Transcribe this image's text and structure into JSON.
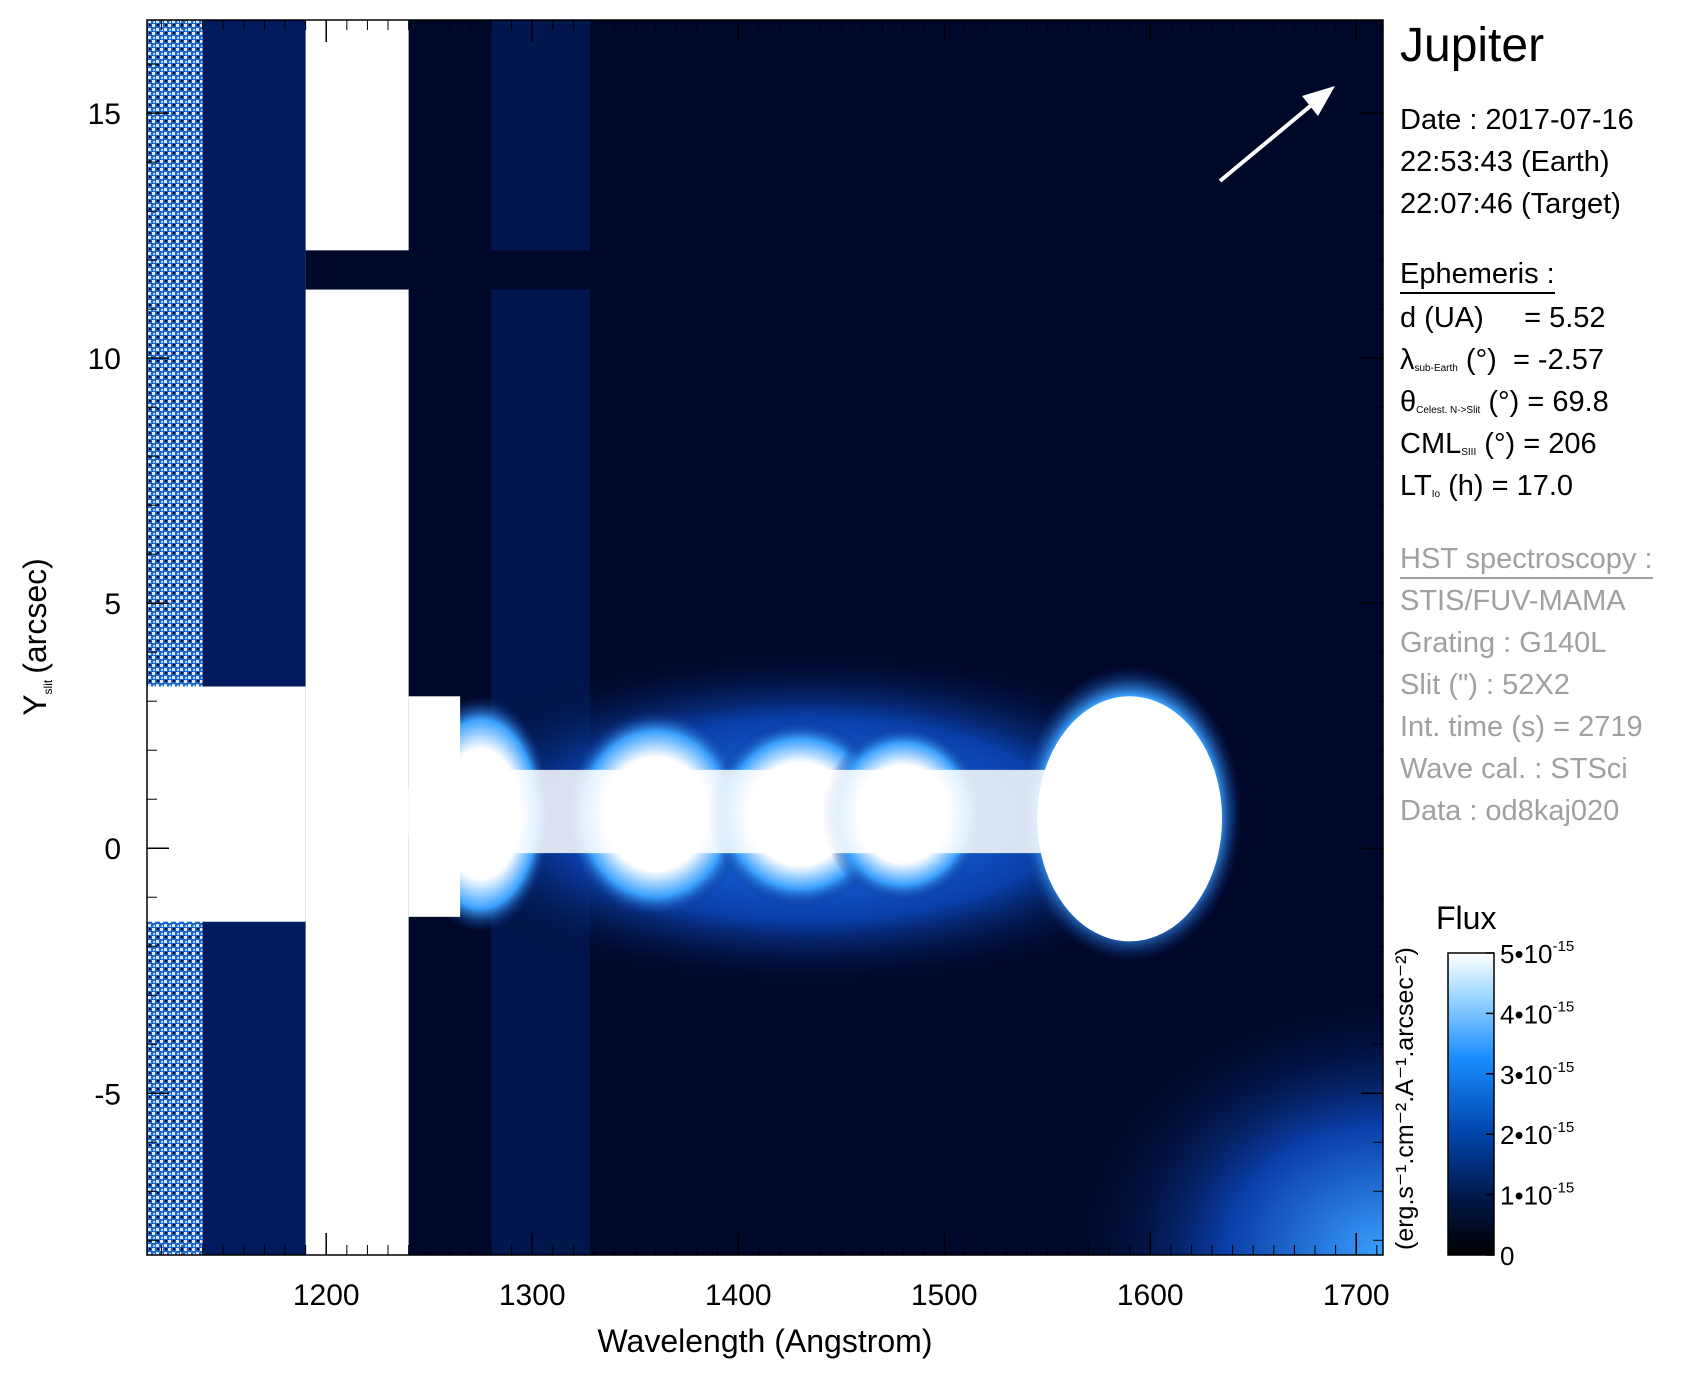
{
  "chart_data": {
    "type": "heatmap",
    "title": "Jupiter",
    "xlabel": "Wavelength (Angstrom)",
    "ylabel_main": "Y",
    "ylabel_sub": "slit",
    "ylabel_unit": "(arcsec)",
    "xlim": [
      1113,
      1713
    ],
    "ylim": [
      -8.3,
      16.9
    ],
    "x_ticks": [
      1200,
      1300,
      1400,
      1500,
      1600,
      1700
    ],
    "y_ticks": [
      15,
      10,
      5,
      0,
      -5
    ],
    "x_tick_labels": [
      "1200",
      "1300",
      "1400",
      "1500",
      "1600",
      "1700"
    ],
    "y_tick_labels": [
      "15",
      "10",
      "5",
      "0",
      "-5"
    ],
    "colorbar": {
      "title": "Flux",
      "unit_label": "(erg.s⁻¹.cm⁻².A⁻¹.arcsec⁻²)",
      "range": [
        0,
        5e-15
      ],
      "ticks": [
        0,
        1e-15,
        2e-15,
        3e-15,
        4e-15,
        5e-15
      ],
      "tick_labels": [
        {
          "base": "0",
          "exp": ""
        },
        {
          "base": "1•10",
          "exp": "-15"
        },
        {
          "base": "2•10",
          "exp": "-15"
        },
        {
          "base": "3•10",
          "exp": "-15"
        },
        {
          "base": "4•10",
          "exp": "-15"
        },
        {
          "base": "5•10",
          "exp": "-15"
        }
      ],
      "colors": [
        "#000000",
        "#001a4d",
        "#0044aa",
        "#1a8cff",
        "#99d6ff",
        "#ffffff"
      ]
    },
    "features": [
      {
        "name": "Lyman-alpha geocorona",
        "x_range": [
          1190,
          1240
        ],
        "y_range": [
          -8.3,
          16.9
        ],
        "level": 1.0
      },
      {
        "name": "Jupiter disk emission",
        "x_range": [
          1240,
          1630
        ],
        "y_range": [
          -2.2,
          3.1
        ],
        "level": 0.8
      },
      {
        "name": "bright band 1550-1630",
        "x_range": [
          1550,
          1630
        ],
        "y_range": [
          -2.0,
          3.0
        ],
        "level": 1.0
      },
      {
        "name": "slit bar",
        "y_range": [
          11.4,
          12.2
        ]
      }
    ]
  },
  "panel": {
    "title": "Jupiter",
    "date_label": "Date : 2017-07-16",
    "time_earth": "22:53:43 (Earth)",
    "time_target": "22:07:46 (Target)",
    "ephemeris_title": "Ephemeris :",
    "ephemeris": [
      {
        "sym": "d (UA)",
        "sub": "",
        "rest": "     = 5.52"
      },
      {
        "sym": "λ",
        "sub": "sub-Earth",
        "rest": " (°)  = -2.57"
      },
      {
        "sym": "θ",
        "sub": "Celest. N->Slit",
        "rest": " (°) = 69.8"
      },
      {
        "sym": "CML",
        "sub": "SIII",
        "rest": " (°) = 206"
      },
      {
        "sym": "LT",
        "sub": "Io",
        "rest": " (h) = 17.0"
      }
    ],
    "hst_title": "HST spectroscopy :",
    "hst_lines": [
      "STIS/FUV-MAMA",
      "Grating : G140L",
      "Slit (\") : 52X2",
      "Int. time (s) = 2719",
      "Wave cal. : STSci",
      "Data : od8kaj020"
    ]
  }
}
